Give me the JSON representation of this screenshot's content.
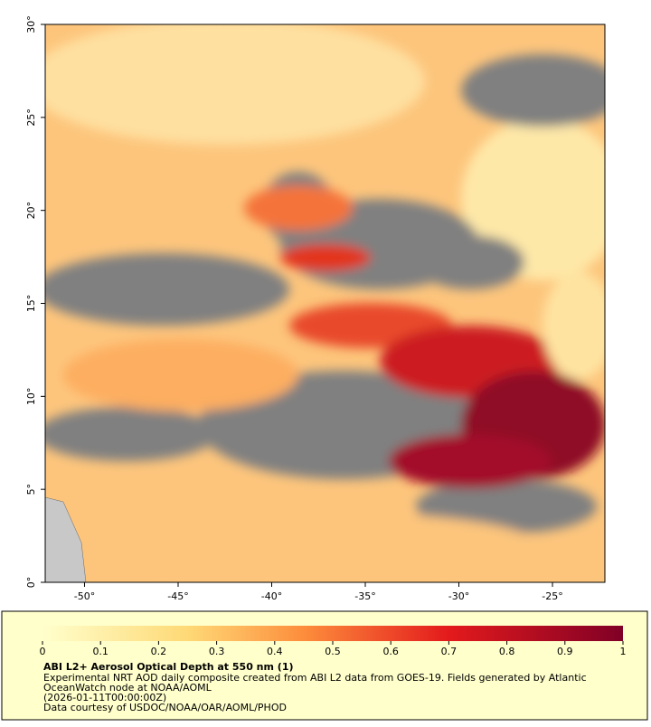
{
  "map": {
    "xlim": [
      -52.1,
      -22.2
    ],
    "ylim": [
      0,
      30
    ],
    "xticks": [
      {
        "value": -50,
        "label": "-50°"
      },
      {
        "value": -45,
        "label": "-45°"
      },
      {
        "value": -40,
        "label": "-40°"
      },
      {
        "value": -35,
        "label": "-35°"
      },
      {
        "value": -30,
        "label": "-30°"
      },
      {
        "value": -25,
        "label": "-25°"
      }
    ],
    "yticks": [
      {
        "value": 0,
        "label": "0°"
      },
      {
        "value": 5,
        "label": "5°"
      },
      {
        "value": 10,
        "label": "10°"
      },
      {
        "value": 15,
        "label": "15°"
      },
      {
        "value": 20,
        "label": "20°"
      },
      {
        "value": 25,
        "label": "25°"
      },
      {
        "value": 30,
        "label": "30°"
      }
    ]
  },
  "colorbar": {
    "lim": [
      0,
      1
    ],
    "ticks": [
      0,
      0.1,
      0.2,
      0.3,
      0.4,
      0.5,
      0.6,
      0.7,
      0.8,
      0.9,
      1
    ]
  },
  "legend": {
    "title": "ABI L2+ Aerosol Optical Depth at 550 nm (1)",
    "lines": [
      "Experimental NRT AOD daily composite created from ABI L2 data from GOES-19. Fields generated by Atlantic",
      "OceanWatch node at NOAA/AOML",
      "(2026-01-11T00:00:00Z)",
      "Data courtesy of USDOC/NOAA/OAR/AOML/PHOD"
    ]
  }
}
